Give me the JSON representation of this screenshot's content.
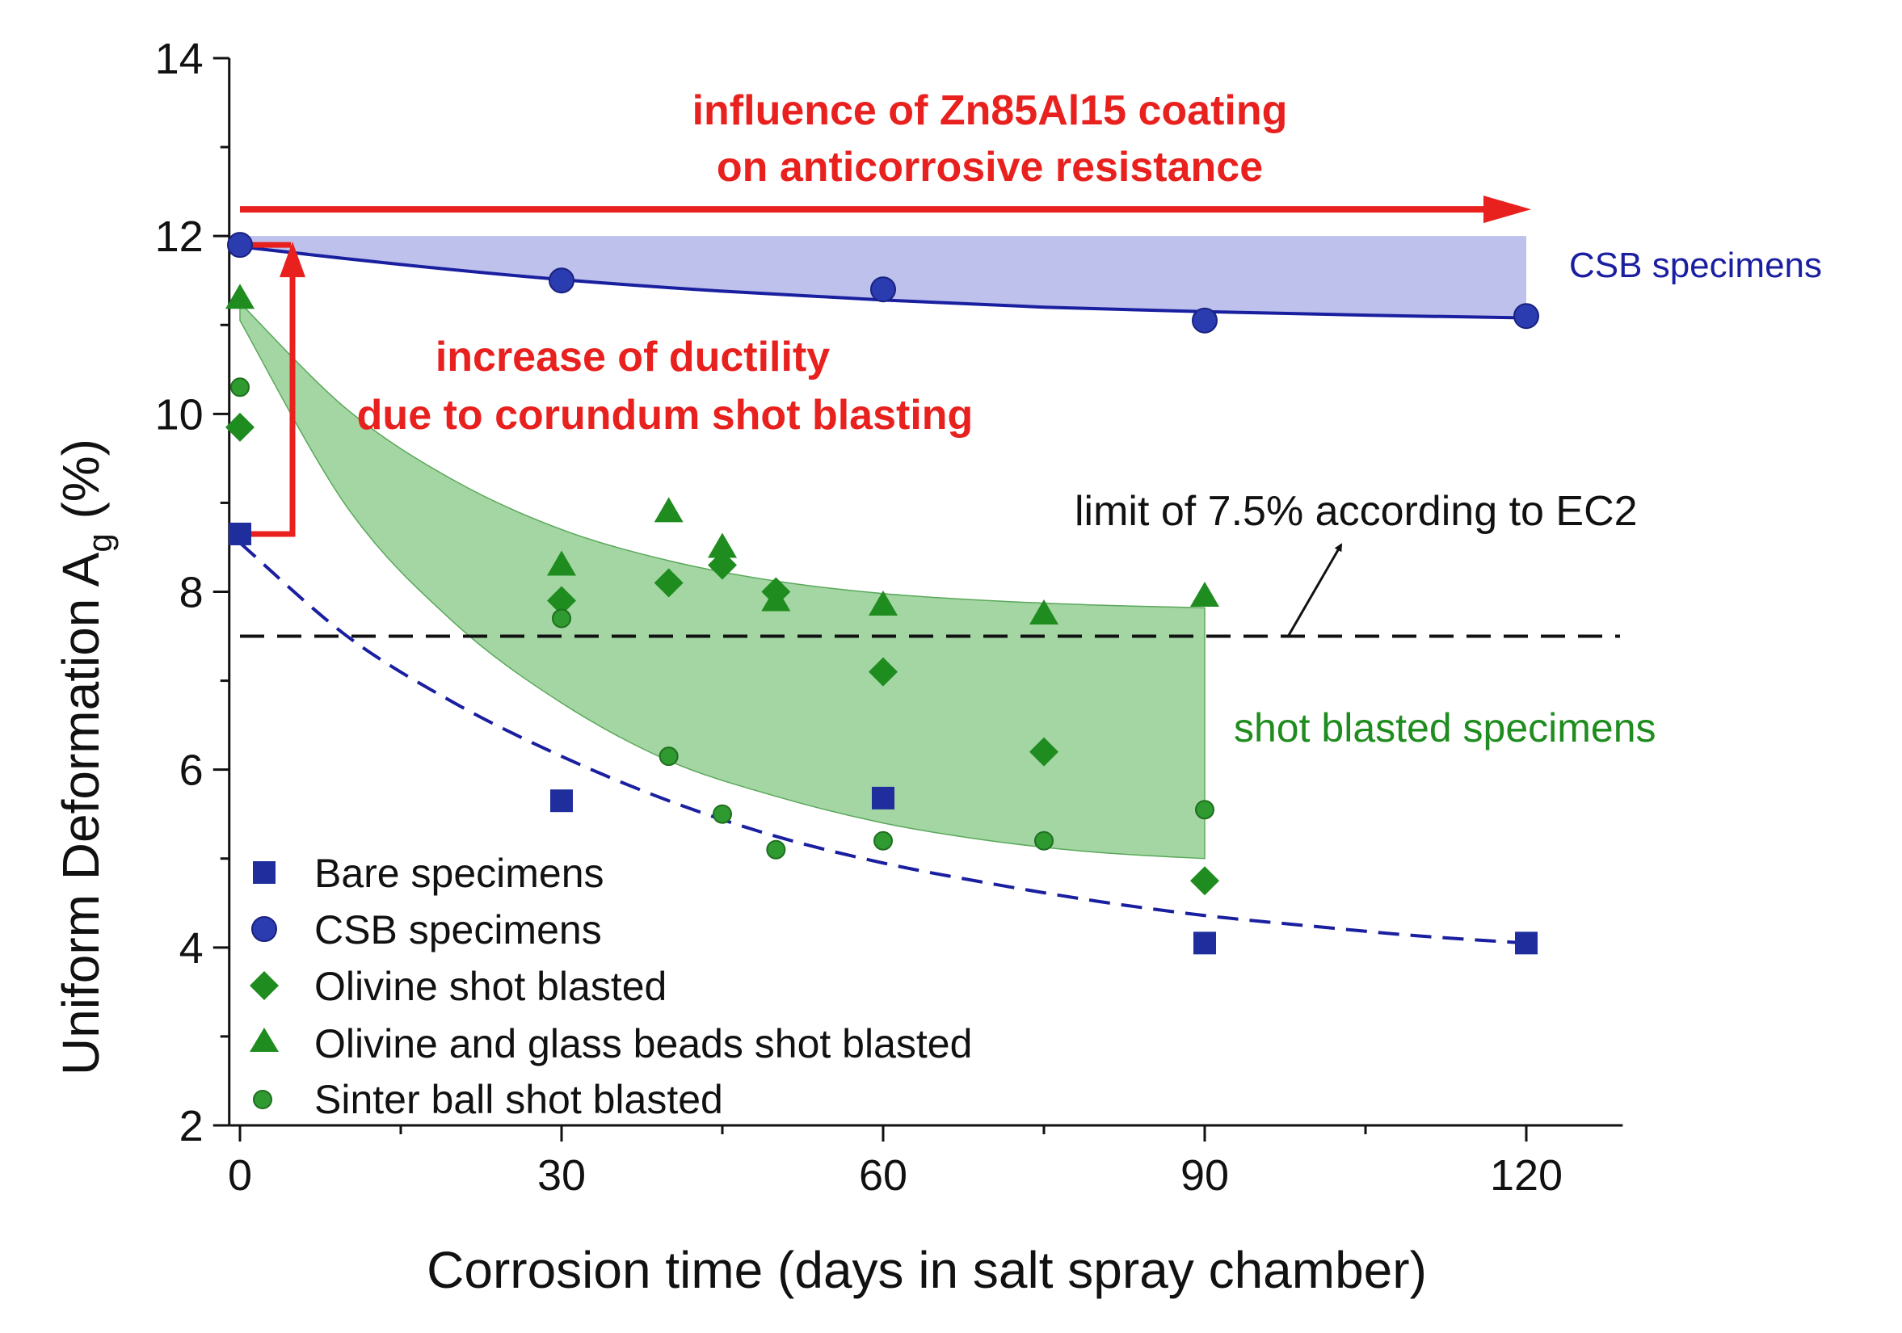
{
  "chart_data": {
    "type": "scatter",
    "title": "",
    "xlabel": "Corrosion time (days in salt spray chamber)",
    "ylabel_main": "Uniform Deformation A",
    "ylabel_sub": "g",
    "ylabel_unit": " (%)",
    "xlim": [
      -1,
      129
    ],
    "ylim": [
      2,
      14
    ],
    "x_ticks": [
      0,
      30,
      60,
      90,
      120
    ],
    "x_tick_labels": [
      "0",
      "30",
      "60",
      "90",
      "120"
    ],
    "y_ticks": [
      2,
      4,
      6,
      8,
      10,
      12,
      14
    ],
    "y_tick_labels": [
      "2",
      "4",
      "6",
      "8",
      "10",
      "12",
      "14"
    ],
    "series": [
      {
        "name": "Bare specimens",
        "marker": "square",
        "color": "#1f2e9c",
        "x": [
          0,
          30,
          60,
          90,
          120
        ],
        "y": [
          8.65,
          5.65,
          5.68,
          4.05,
          4.05
        ]
      },
      {
        "name": "CSB specimens",
        "marker": "circle",
        "color": "#2b3bb0",
        "x": [
          0,
          30,
          60,
          90,
          120
        ],
        "y": [
          11.9,
          11.5,
          11.4,
          11.05,
          11.1
        ]
      },
      {
        "name": "Olivine shot blasted",
        "marker": "diamond",
        "color": "#1e8c1e",
        "x": [
          0,
          30,
          40,
          45,
          50,
          60,
          75,
          90
        ],
        "y": [
          9.85,
          7.9,
          8.1,
          8.3,
          8.0,
          7.1,
          6.2,
          4.75
        ]
      },
      {
        "name": "Olivine and glass beads shot blasted",
        "marker": "triangle",
        "color": "#1e8c1e",
        "x": [
          0,
          30,
          40,
          45,
          50,
          60,
          75,
          90
        ],
        "y": [
          11.3,
          8.3,
          8.9,
          8.5,
          7.9,
          7.85,
          7.75,
          7.95
        ]
      },
      {
        "name": "Sinter ball shot blasted",
        "marker": "smallcircle",
        "color": "#2f9a2f",
        "x": [
          0,
          30,
          40,
          45,
          50,
          60,
          75,
          90
        ],
        "y": [
          10.3,
          7.7,
          6.15,
          5.5,
          5.1,
          5.2,
          5.2,
          5.55
        ]
      }
    ],
    "fits": {
      "csb_fit": {
        "color": "#1a1fa0",
        "style": "solid",
        "x": [
          0,
          15,
          30,
          45,
          60,
          75,
          90,
          105,
          120
        ],
        "y": [
          11.88,
          11.68,
          11.51,
          11.38,
          11.28,
          11.2,
          11.15,
          11.11,
          11.08
        ]
      },
      "bare_fit": {
        "color": "#1a1fa0",
        "style": "dashed",
        "x": [
          0,
          10,
          20,
          30,
          40,
          50,
          60,
          70,
          80,
          90,
          100,
          110,
          120
        ],
        "y": [
          8.55,
          7.5,
          6.75,
          6.15,
          5.65,
          5.25,
          4.95,
          4.72,
          4.52,
          4.36,
          4.24,
          4.13,
          4.05
        ]
      }
    },
    "bands": {
      "csb_band": {
        "color": "#9aa0e0",
        "x": [
          0,
          15,
          30,
          45,
          60,
          75,
          90,
          105,
          120
        ],
        "upper": [
          12,
          12,
          12,
          12,
          12,
          12,
          12,
          12,
          12
        ],
        "lower": [
          11.88,
          11.68,
          11.51,
          11.38,
          11.28,
          11.2,
          11.15,
          11.11,
          11.08
        ]
      },
      "shot_band": {
        "color": "#7cc47c",
        "x": [
          0,
          10,
          20,
          30,
          40,
          50,
          60,
          70,
          80,
          90
        ],
        "upper": [
          11.25,
          10.05,
          9.25,
          8.7,
          8.35,
          8.12,
          7.98,
          7.9,
          7.85,
          7.82
        ],
        "lower": [
          11.05,
          8.95,
          7.65,
          6.75,
          6.1,
          5.7,
          5.4,
          5.2,
          5.07,
          5.0
        ]
      }
    },
    "reference_line": {
      "y": 7.5,
      "label": "limit of 7.5% according to EC2",
      "color": "#111111"
    },
    "annotations": {
      "coating_line1": "influence of Zn85Al15 coating",
      "coating_line2": "on anticorrosive resistance",
      "ductility_line1": "increase of ductility",
      "ductility_line2": "due to corundum shot blasting",
      "csb_label": "CSB specimens",
      "shot_label": "shot blasted specimens",
      "red_color": "#e8201e",
      "blue_color": "#1a1fa0",
      "green_color": "#1e8c1e"
    },
    "legend_position": "bottom-left"
  }
}
